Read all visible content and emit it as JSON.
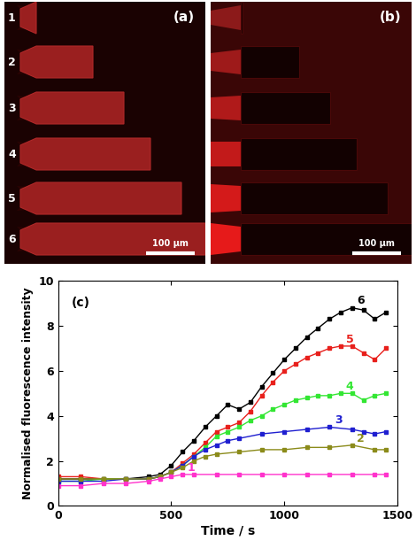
{
  "panels": [
    {
      "label": "(a)",
      "channel_numbers": [
        "1",
        "2",
        "3",
        "4",
        "5",
        "6"
      ],
      "scale_bar": "100 µm"
    },
    {
      "label": "(b)",
      "scale_bar": "100 µm"
    }
  ],
  "chart_data": {
    "type": "line",
    "label": "(c)",
    "x_label": "Time / s",
    "y_label": "Normalised fluorescence intensity",
    "xlim": [
      0,
      1500
    ],
    "xticks": [
      0,
      500,
      1000,
      1500
    ],
    "ylim": [
      0,
      10
    ],
    "yticks": [
      0,
      2,
      4,
      6,
      8,
      10
    ],
    "marker": "s",
    "line_style": "solid",
    "grid": false,
    "series": [
      {
        "name": "6",
        "color": "#000000",
        "x": [
          0,
          100,
          200,
          300,
          400,
          450,
          500,
          550,
          600,
          650,
          700,
          750,
          800,
          850,
          900,
          950,
          1000,
          1050,
          1100,
          1150,
          1200,
          1250,
          1300,
          1350,
          1400,
          1450
        ],
        "values": [
          1.2,
          1.2,
          1.2,
          1.2,
          1.3,
          1.4,
          1.8,
          2.4,
          2.9,
          3.5,
          4.0,
          4.5,
          4.3,
          4.6,
          5.3,
          5.9,
          6.5,
          7.0,
          7.5,
          7.9,
          8.3,
          8.6,
          8.8,
          8.7,
          8.3,
          8.6
        ]
      },
      {
        "name": "5",
        "color": "#e8201c",
        "x": [
          0,
          100,
          200,
          300,
          400,
          450,
          500,
          550,
          600,
          650,
          700,
          750,
          800,
          850,
          900,
          950,
          1000,
          1050,
          1100,
          1150,
          1200,
          1250,
          1300,
          1350,
          1400,
          1450
        ],
        "values": [
          1.3,
          1.3,
          1.2,
          1.2,
          1.2,
          1.3,
          1.5,
          1.9,
          2.3,
          2.8,
          3.3,
          3.5,
          3.7,
          4.2,
          4.9,
          5.5,
          6.0,
          6.3,
          6.6,
          6.8,
          7.0,
          7.1,
          7.1,
          6.8,
          6.5,
          7.0
        ]
      },
      {
        "name": "4",
        "color": "#33e633",
        "x": [
          0,
          100,
          200,
          300,
          400,
          450,
          500,
          550,
          600,
          650,
          700,
          750,
          800,
          850,
          900,
          950,
          1000,
          1050,
          1100,
          1150,
          1200,
          1250,
          1300,
          1350,
          1400,
          1450
        ],
        "values": [
          1.1,
          1.1,
          1.2,
          1.2,
          1.2,
          1.3,
          1.5,
          1.8,
          2.2,
          2.6,
          3.1,
          3.3,
          3.5,
          3.8,
          4.0,
          4.3,
          4.5,
          4.7,
          4.8,
          4.9,
          4.9,
          5.0,
          5.0,
          4.7,
          4.9,
          5.0
        ]
      },
      {
        "name": "3",
        "color": "#1f1fd0",
        "x": [
          0,
          100,
          200,
          300,
          400,
          450,
          500,
          550,
          600,
          650,
          700,
          750,
          800,
          900,
          1000,
          1100,
          1200,
          1300,
          1350,
          1400,
          1450
        ],
        "values": [
          1.1,
          1.1,
          1.1,
          1.2,
          1.2,
          1.3,
          1.5,
          1.8,
          2.2,
          2.5,
          2.7,
          2.9,
          3.0,
          3.2,
          3.3,
          3.4,
          3.5,
          3.4,
          3.3,
          3.2,
          3.3
        ]
      },
      {
        "name": "2",
        "color": "#8b8b1a",
        "x": [
          0,
          100,
          200,
          300,
          400,
          450,
          500,
          550,
          600,
          650,
          700,
          800,
          900,
          1000,
          1100,
          1200,
          1300,
          1400,
          1450
        ],
        "values": [
          1.2,
          1.2,
          1.2,
          1.2,
          1.2,
          1.3,
          1.5,
          1.7,
          2.0,
          2.2,
          2.3,
          2.4,
          2.5,
          2.5,
          2.6,
          2.6,
          2.7,
          2.5,
          2.5
        ]
      },
      {
        "name": "1",
        "color": "#ff33cc",
        "x": [
          0,
          100,
          200,
          300,
          400,
          450,
          500,
          550,
          600,
          700,
          800,
          900,
          1000,
          1100,
          1200,
          1300,
          1400,
          1450
        ],
        "values": [
          0.9,
          0.9,
          1.0,
          1.0,
          1.1,
          1.2,
          1.3,
          1.4,
          1.4,
          1.4,
          1.4,
          1.4,
          1.4,
          1.4,
          1.4,
          1.4,
          1.4,
          1.4
        ]
      }
    ]
  }
}
